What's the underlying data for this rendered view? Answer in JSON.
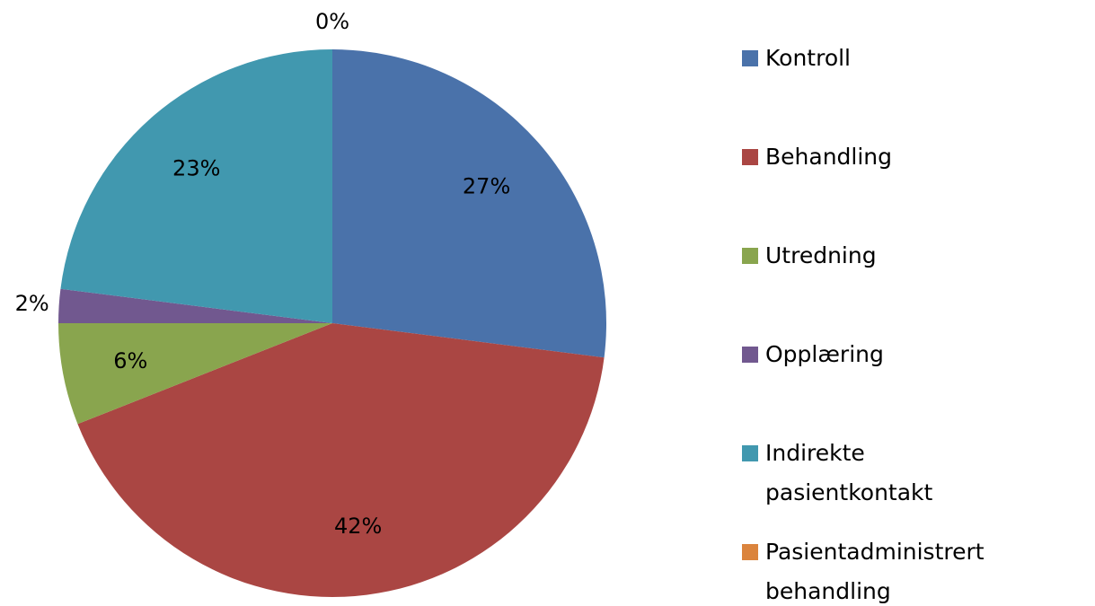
{
  "chart_data": {
    "type": "pie",
    "categories": [
      "Kontroll",
      "Behandling",
      "Utredning",
      "Opplæring",
      "Indirekte pasientkontakt",
      "Pasientadministrert behandling"
    ],
    "values": [
      27,
      42,
      6,
      2,
      23,
      0
    ],
    "value_labels": [
      "27%",
      "42%",
      "6%",
      "2%",
      "23%",
      "0%"
    ],
    "colors": [
      "#4a72aa",
      "#aa4643",
      "#89a54e",
      "#71588f",
      "#4198af",
      "#db843d"
    ],
    "legend": "right"
  }
}
